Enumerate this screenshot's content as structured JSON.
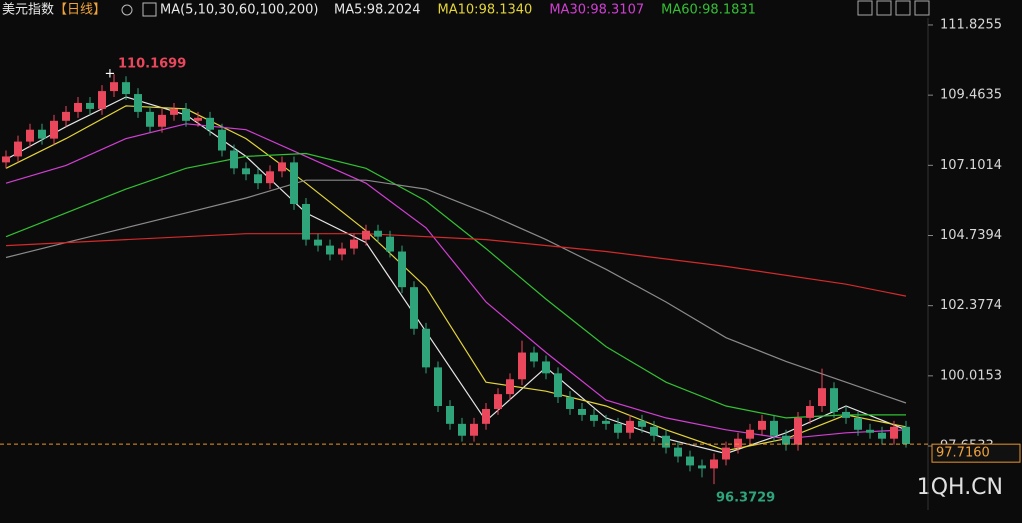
{
  "chart_data": {
    "type": "candlestick",
    "title": "美元指数",
    "period": "【日线】",
    "ma_header": "MA(5,10,30,60,100,200)",
    "watermark": "1QH.CN",
    "up_color": "#e8475c",
    "down_color": "#2fa47b",
    "xlim": [
      0,
      75
    ],
    "ylim": [
      95.5,
      112.06
    ],
    "yticks": [
      111.8255,
      109.4635,
      107.1014,
      104.7394,
      102.3774,
      100.0153,
      97.6533
    ],
    "open": [
      107.2,
      107.4,
      107.9,
      108.3,
      108.0,
      108.6,
      108.9,
      109.2,
      109.0,
      109.6,
      109.9,
      109.5,
      108.9,
      108.4,
      108.8,
      109.0,
      108.6,
      108.7,
      108.3,
      107.6,
      107.0,
      106.8,
      106.5,
      106.9,
      107.2,
      105.8,
      104.6,
      104.4,
      104.1,
      104.3,
      104.6,
      104.9,
      104.7,
      104.2,
      103.0,
      101.6,
      100.3,
      99.0,
      98.4,
      98.0,
      98.4,
      98.9,
      99.4,
      99.9,
      100.8,
      100.5,
      100.1,
      99.3,
      98.9,
      98.7,
      98.5,
      98.4,
      98.1,
      98.5,
      98.3,
      98.0,
      97.6,
      97.3,
      97.0,
      96.9,
      97.2,
      97.6,
      97.9,
      98.2,
      98.5,
      98.0,
      97.7,
      98.6,
      99.0,
      99.6,
      98.8,
      98.6,
      98.2,
      98.1,
      97.9,
      98.3
    ],
    "high": [
      107.6,
      108.1,
      108.5,
      108.5,
      108.8,
      109.1,
      109.4,
      109.4,
      109.8,
      110.1699,
      110.1,
      109.7,
      109.1,
      109.0,
      109.2,
      109.2,
      108.9,
      108.9,
      108.5,
      107.8,
      107.2,
      107.0,
      107.1,
      107.4,
      107.4,
      106.0,
      104.8,
      104.6,
      104.5,
      104.8,
      105.1,
      105.1,
      104.9,
      104.4,
      103.2,
      101.8,
      100.5,
      99.2,
      98.6,
      98.6,
      99.1,
      99.6,
      100.1,
      101.2,
      101.0,
      100.7,
      100.3,
      99.5,
      99.1,
      98.9,
      98.7,
      98.6,
      98.7,
      98.7,
      98.5,
      98.2,
      97.8,
      97.5,
      97.2,
      97.4,
      97.8,
      98.1,
      98.4,
      98.7,
      98.7,
      98.2,
      98.8,
      99.2,
      100.2599,
      99.8,
      99.0,
      98.8,
      98.4,
      98.3,
      98.5,
      98.5
    ],
    "low": [
      107.0,
      107.2,
      107.7,
      107.8,
      107.8,
      108.4,
      108.7,
      108.8,
      108.8,
      109.4,
      109.3,
      108.7,
      108.2,
      108.2,
      108.6,
      108.4,
      108.4,
      108.1,
      107.4,
      106.8,
      106.6,
      106.3,
      106.3,
      106.7,
      105.6,
      104.4,
      104.2,
      103.9,
      103.9,
      104.1,
      104.4,
      104.5,
      104.0,
      102.8,
      101.4,
      100.1,
      98.8,
      98.2,
      97.8,
      97.8,
      98.2,
      98.7,
      99.2,
      99.7,
      100.3,
      99.9,
      99.1,
      98.7,
      98.5,
      98.3,
      98.2,
      97.9,
      97.9,
      98.1,
      97.8,
      97.4,
      97.1,
      96.8,
      96.6,
      96.3729,
      97.0,
      97.4,
      97.7,
      98.0,
      97.8,
      97.5,
      97.5,
      98.4,
      98.8,
      98.6,
      98.4,
      98.0,
      97.9,
      97.7,
      97.7,
      97.6
    ],
    "close": [
      107.4,
      107.9,
      108.3,
      108.0,
      108.6,
      108.9,
      109.2,
      109.0,
      109.6,
      109.9,
      109.5,
      108.9,
      108.4,
      108.8,
      109.0,
      108.6,
      108.7,
      108.3,
      107.6,
      107.0,
      106.8,
      106.5,
      106.9,
      107.2,
      105.8,
      104.6,
      104.4,
      104.1,
      104.3,
      104.6,
      104.9,
      104.7,
      104.2,
      103.0,
      101.6,
      100.3,
      99.0,
      98.4,
      98.0,
      98.4,
      98.9,
      99.4,
      99.9,
      100.8,
      100.5,
      100.1,
      99.3,
      98.9,
      98.7,
      98.5,
      98.4,
      98.1,
      98.5,
      98.3,
      98.0,
      97.6,
      97.3,
      97.0,
      96.9,
      97.2,
      97.6,
      97.9,
      98.2,
      98.5,
      98.0,
      97.7,
      98.6,
      99.0,
      99.6,
      98.8,
      98.6,
      98.2,
      98.1,
      97.9,
      98.3,
      97.72
    ],
    "max_label": 110.1699,
    "min_label": 96.3729,
    "last_price": {
      "value": 97.716,
      "label": "97.7160"
    },
    "series": [
      {
        "name": "MA5:98.2024",
        "color": "#e6e6e6",
        "x": [
          0,
          5,
          10,
          15,
          20,
          25,
          30,
          35,
          40,
          45,
          50,
          55,
          60,
          65,
          70,
          75
        ],
        "values": [
          107.3,
          108.4,
          109.4,
          108.8,
          107.4,
          105.5,
          104.5,
          101.5,
          98.5,
          100.3,
          98.6,
          97.9,
          97.4,
          98.1,
          99.0,
          98.2
        ]
      },
      {
        "name": "MA10:98.1340",
        "color": "#e3d43a",
        "x": [
          0,
          5,
          10,
          15,
          20,
          25,
          30,
          35,
          40,
          45,
          50,
          55,
          60,
          65,
          70,
          75
        ],
        "values": [
          107.0,
          108.0,
          109.1,
          109.0,
          108.0,
          106.5,
          104.9,
          103.0,
          99.8,
          99.5,
          99.0,
          98.2,
          97.5,
          97.9,
          98.7,
          98.3
        ]
      },
      {
        "name": "MA30:98.3107",
        "color": "#d13fd4",
        "x": [
          0,
          5,
          10,
          15,
          20,
          25,
          30,
          35,
          40,
          45,
          50,
          55,
          60,
          65,
          70,
          75
        ],
        "values": [
          106.5,
          107.1,
          108.0,
          108.5,
          108.3,
          107.4,
          106.5,
          105.0,
          102.5,
          100.8,
          99.2,
          98.6,
          98.2,
          97.9,
          98.1,
          98.2
        ]
      },
      {
        "name": "MA60:98.1831",
        "color": "#33c033",
        "x": [
          0,
          5,
          10,
          15,
          20,
          25,
          30,
          35,
          40,
          45,
          50,
          55,
          60,
          65,
          70,
          75
        ],
        "values": [
          104.7,
          105.5,
          106.3,
          107.0,
          107.4,
          107.5,
          107.0,
          105.9,
          104.3,
          102.6,
          101.0,
          99.8,
          99.0,
          98.6,
          98.7,
          98.7
        ]
      },
      {
        "color": "#8a8a8a",
        "x": [
          0,
          5,
          10,
          15,
          20,
          25,
          30,
          35,
          40,
          45,
          50,
          55,
          60,
          65,
          70,
          75
        ],
        "values": [
          104.0,
          104.5,
          105.0,
          105.5,
          106.0,
          106.6,
          106.6,
          106.3,
          105.5,
          104.6,
          103.6,
          102.5,
          101.3,
          100.5,
          99.8,
          99.1
        ]
      },
      {
        "color": "#d42a2a",
        "x": [
          0,
          10,
          20,
          30,
          40,
          50,
          60,
          70,
          75
        ],
        "values": [
          104.4,
          104.6,
          104.8,
          104.8,
          104.6,
          104.2,
          103.7,
          103.1,
          102.7
        ]
      }
    ]
  }
}
